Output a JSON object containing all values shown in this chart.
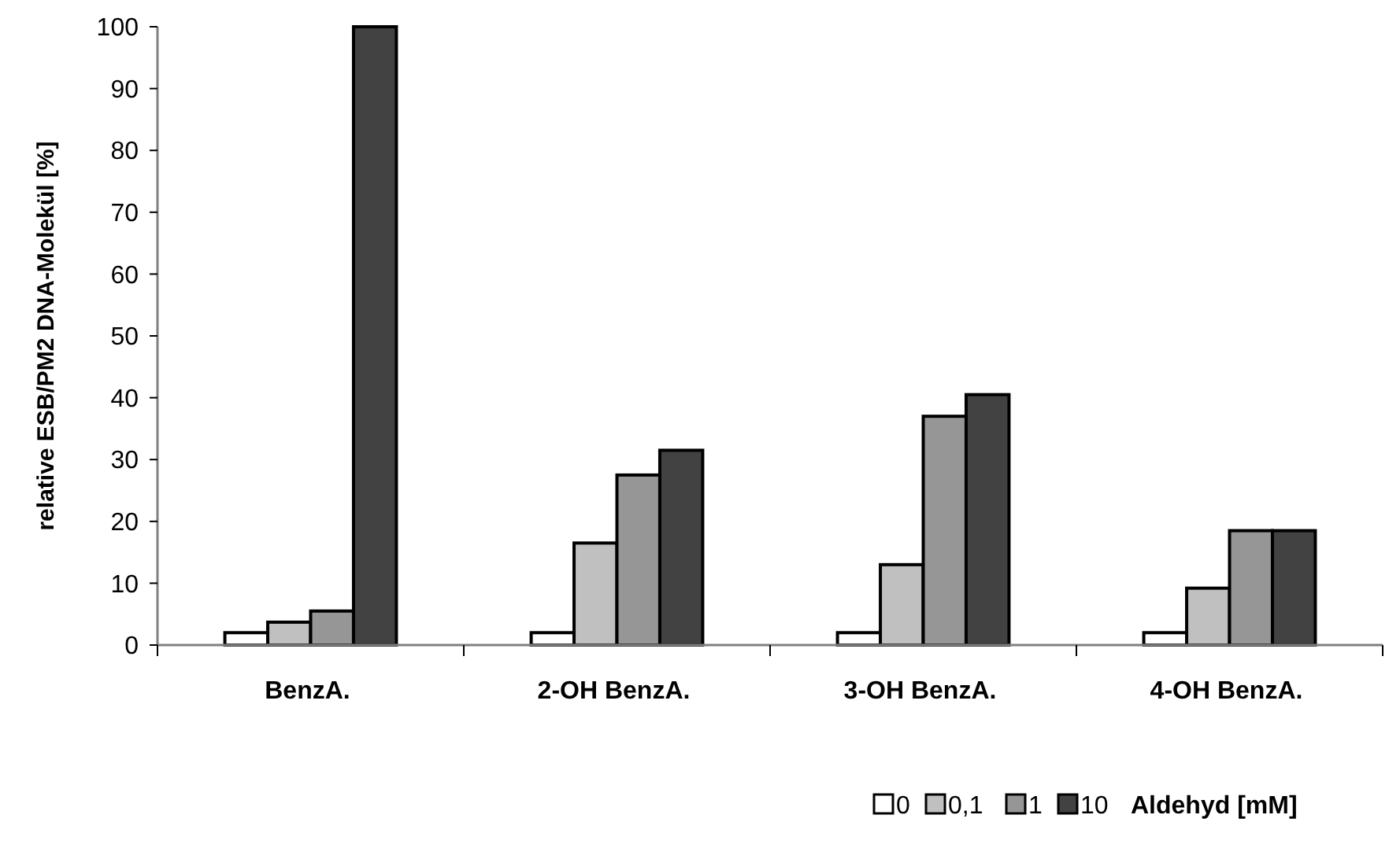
{
  "chart_data": {
    "type": "bar",
    "ylabel": "relative ESB/PM2 DNA-Molekül [%]",
    "legend_title": "Aldehyd [mM]",
    "categories": [
      "BenzA.",
      "2-OH BenzA.",
      "3-OH BenzA.",
      "4-OH BenzA."
    ],
    "series": [
      {
        "name": "0",
        "color": "#ffffff",
        "values": [
          2,
          2,
          2,
          2
        ]
      },
      {
        "name": "0,1",
        "color": "#c0c0c0",
        "values": [
          3.7,
          16.5,
          13,
          9.2
        ]
      },
      {
        "name": "1",
        "color": "#969696",
        "values": [
          5.5,
          27.5,
          37,
          18.5
        ]
      },
      {
        "name": "10",
        "color": "#424242",
        "values": [
          100,
          31.5,
          40.5,
          18.5
        ]
      }
    ],
    "ylim": [
      0,
      100
    ],
    "yticks": [
      0,
      10,
      20,
      30,
      40,
      50,
      60,
      70,
      80,
      90,
      100
    ],
    "grid": false,
    "legend": "bottom"
  }
}
